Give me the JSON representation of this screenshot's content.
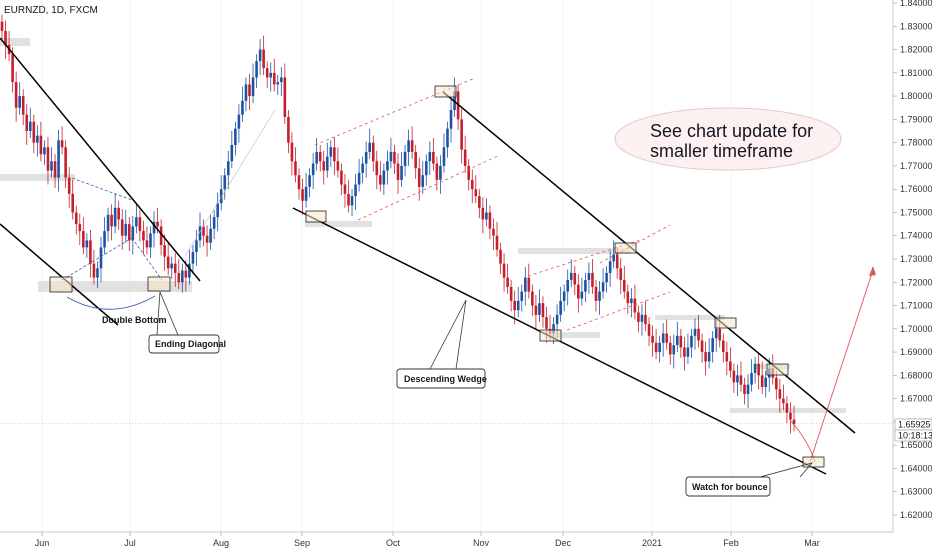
{
  "chart_data": {
    "type": "candlestick",
    "title": "EURNZD, 1D, FXCM",
    "x_tick_labels": [
      "Jun",
      "Jul",
      "Aug",
      "Sep",
      "Oct",
      "Nov",
      "Dec",
      "2021",
      "Feb",
      "Mar"
    ],
    "y_tick_labels": [
      "1.62000",
      "1.63000",
      "1.64000",
      "1.65000",
      "1.66000",
      "1.67000",
      "1.68000",
      "1.69000",
      "1.70000",
      "1.71000",
      "1.72000",
      "1.73000",
      "1.74000",
      "1.75000",
      "1.76000",
      "1.77000",
      "1.78000",
      "1.79000",
      "1.80000",
      "1.81000",
      "1.82000",
      "1.83000",
      "1.84000"
    ],
    "ylim": [
      1.614,
      1.843
    ],
    "last_price": "1.65925",
    "countdown": "10:18:13",
    "annotations": {
      "double_bottom": "Double Bottom",
      "ending_diagonal": "Ending Diagonal",
      "descending_wedge": "Descending Wedge",
      "watch_for_bounce": "Watch for bounce",
      "chart_update": [
        "See chart update for",
        "smaller timeframe"
      ]
    },
    "colors": {
      "up": "#1e53a4",
      "down": "#c4202b",
      "line": "#000000",
      "channel": "#e05454",
      "zone": "#d9d9d9",
      "box": "#f5e6c8"
    },
    "approx_closes": [
      1.828,
      1.822,
      1.818,
      1.806,
      1.795,
      1.8,
      1.792,
      1.785,
      1.789,
      1.78,
      1.783,
      1.775,
      1.778,
      1.768,
      1.772,
      1.765,
      1.781,
      1.778,
      1.765,
      1.758,
      1.75,
      1.745,
      1.742,
      1.735,
      1.738,
      1.728,
      1.722,
      1.726,
      1.735,
      1.742,
      1.749,
      1.744,
      1.752,
      1.747,
      1.74,
      1.745,
      1.738,
      1.744,
      1.748,
      1.742,
      1.738,
      1.735,
      1.741,
      1.746,
      1.744,
      1.736,
      1.731,
      1.726,
      1.728,
      1.724,
      1.72,
      1.725,
      1.722,
      1.728,
      1.733,
      1.738,
      1.744,
      1.74,
      1.737,
      1.743,
      1.748,
      1.754,
      1.76,
      1.766,
      1.772,
      1.779,
      1.786,
      1.792,
      1.798,
      1.805,
      1.8,
      1.808,
      1.815,
      1.82,
      1.812,
      1.808,
      1.81,
      1.805,
      1.806,
      1.808,
      1.791,
      1.78,
      1.772,
      1.766,
      1.76,
      1.755,
      1.761,
      1.766,
      1.771,
      1.776,
      1.772,
      1.768,
      1.774,
      1.778,
      1.772,
      1.768,
      1.762,
      1.758,
      1.753,
      1.757,
      1.762,
      1.767,
      1.771,
      1.776,
      1.78,
      1.772,
      1.766,
      1.762,
      1.768,
      1.772,
      1.776,
      1.771,
      1.764,
      1.77,
      1.776,
      1.781,
      1.776,
      1.769,
      1.761,
      1.766,
      1.772,
      1.776,
      1.771,
      1.764,
      1.77,
      1.778,
      1.786,
      1.794,
      1.802,
      1.79,
      1.777,
      1.77,
      1.764,
      1.76,
      1.757,
      1.752,
      1.747,
      1.75,
      1.743,
      1.74,
      1.734,
      1.728,
      1.722,
      1.718,
      1.712,
      1.708,
      1.712,
      1.716,
      1.722,
      1.716,
      1.71,
      1.706,
      1.711,
      1.705,
      1.7,
      1.698,
      1.702,
      1.706,
      1.712,
      1.716,
      1.721,
      1.724,
      1.719,
      1.713,
      1.716,
      1.721,
      1.724,
      1.718,
      1.712,
      1.716,
      1.72,
      1.724,
      1.729,
      1.732,
      1.726,
      1.721,
      1.716,
      1.711,
      1.713,
      1.707,
      1.703,
      1.706,
      1.702,
      1.697,
      1.694,
      1.69,
      1.694,
      1.698,
      1.694,
      1.689,
      1.693,
      1.697,
      1.692,
      1.688,
      1.692,
      1.697,
      1.7,
      1.695,
      1.69,
      1.686,
      1.69,
      1.696,
      1.7,
      1.695,
      1.69,
      1.686,
      1.682,
      1.677,
      1.68,
      1.676,
      1.672,
      1.676,
      1.681,
      1.685,
      1.68,
      1.675,
      1.679,
      1.683,
      1.679,
      1.674,
      1.67,
      1.668,
      1.664,
      1.661,
      1.659
    ]
  }
}
